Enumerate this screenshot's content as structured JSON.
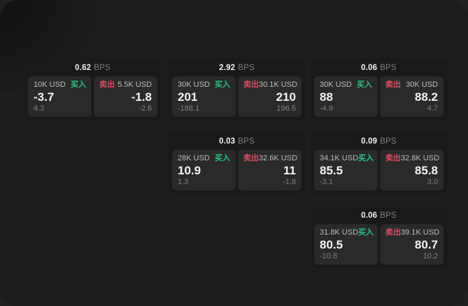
{
  "labels": {
    "bps_unit": "BPS",
    "buy": "买入",
    "sell": "卖出"
  },
  "colors": {
    "buy_green": "#2ebd85",
    "sell_red": "#da4c63",
    "panel_bg": "#1c1c1c",
    "card_bg": "#191919",
    "subcard_bg": "#2a2a2a"
  },
  "cards": [
    {
      "bps": "0.62",
      "col": 0,
      "row": 0,
      "buy": {
        "amount": "10K USD",
        "value": "-3.7",
        "delta": "4.3"
      },
      "sell": {
        "amount": "5.5K USD",
        "value": "-1.8",
        "delta": "-2.6"
      }
    },
    {
      "bps": "2.92",
      "col": 1,
      "row": 0,
      "buy": {
        "amount": "30K USD",
        "value": "201",
        "delta": "-188.1"
      },
      "sell": {
        "amount": "30.1K USD",
        "value": "210",
        "delta": "196.5"
      }
    },
    {
      "bps": "0.06",
      "col": 2,
      "row": 0,
      "buy": {
        "amount": "30K USD",
        "value": "88",
        "delta": "-4.9"
      },
      "sell": {
        "amount": "30K USD",
        "value": "88.2",
        "delta": "4.7"
      }
    },
    {
      "bps": "0.03",
      "col": 1,
      "row": 1,
      "buy": {
        "amount": "28K USD",
        "value": "10.9",
        "delta": "1.3"
      },
      "sell": {
        "amount": "32.6K USD",
        "value": "11",
        "delta": "-1.8"
      }
    },
    {
      "bps": "0.09",
      "col": 2,
      "row": 1,
      "buy": {
        "amount": "34.1K USD",
        "value": "85.5",
        "delta": "-3.1"
      },
      "sell": {
        "amount": "32.8K USD",
        "value": "85.8",
        "delta": "3.0"
      }
    },
    {
      "bps": "0.06",
      "col": 2,
      "row": 2,
      "buy": {
        "amount": "31.8K USD",
        "value": "80.5",
        "delta": "-10.8"
      },
      "sell": {
        "amount": "39.1K USD",
        "value": "80.7",
        "delta": "10.2"
      }
    }
  ]
}
